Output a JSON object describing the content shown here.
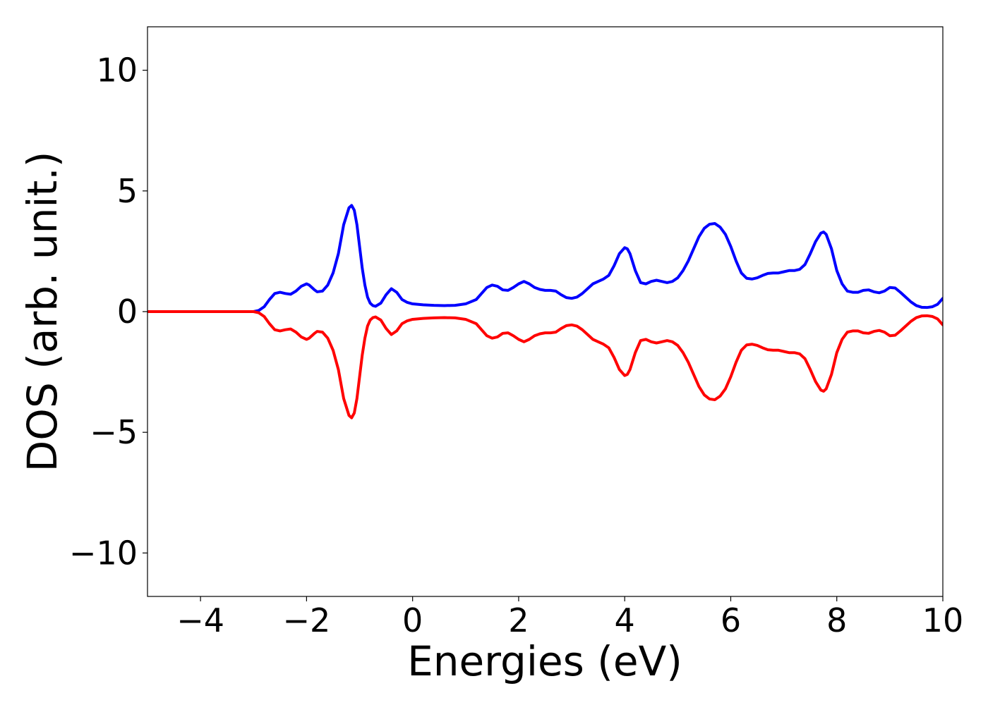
{
  "chart_data": {
    "type": "line",
    "title": "",
    "xlabel": "Energies (eV)",
    "ylabel": "DOS (arb. unit.)",
    "xlim": [
      -5,
      10
    ],
    "ylim": [
      -11.8,
      11.8
    ],
    "xticks": [
      -4,
      -2,
      0,
      2,
      4,
      6,
      8,
      10
    ],
    "xtick_labels": [
      "−4",
      "−2",
      "0",
      "2",
      "4",
      "6",
      "8",
      "10"
    ],
    "yticks": [
      -10,
      -5,
      0,
      5,
      10
    ],
    "ytick_labels": [
      "−10",
      "−5",
      "0",
      "5",
      "10"
    ],
    "grid": false,
    "legend": "none",
    "series": [
      {
        "color": "#0000ff",
        "x": [
          -5.0,
          -4.0,
          -3.0,
          -2.9,
          -2.8,
          -2.7,
          -2.6,
          -2.5,
          -2.4,
          -2.3,
          -2.2,
          -2.1,
          -2.0,
          -1.95,
          -1.9,
          -1.85,
          -1.8,
          -1.7,
          -1.6,
          -1.5,
          -1.4,
          -1.3,
          -1.2,
          -1.15,
          -1.1,
          -1.05,
          -1.0,
          -0.95,
          -0.9,
          -0.85,
          -0.8,
          -0.75,
          -0.7,
          -0.6,
          -0.5,
          -0.4,
          -0.3,
          -0.2,
          -0.1,
          0.0,
          0.2,
          0.4,
          0.6,
          0.8,
          1.0,
          1.2,
          1.3,
          1.4,
          1.5,
          1.6,
          1.7,
          1.8,
          1.9,
          2.0,
          2.1,
          2.2,
          2.3,
          2.4,
          2.5,
          2.6,
          2.7,
          2.8,
          2.9,
          3.0,
          3.1,
          3.2,
          3.3,
          3.4,
          3.5,
          3.6,
          3.7,
          3.8,
          3.9,
          4.0,
          4.05,
          4.1,
          4.2,
          4.3,
          4.4,
          4.5,
          4.6,
          4.7,
          4.8,
          4.9,
          5.0,
          5.1,
          5.2,
          5.3,
          5.4,
          5.5,
          5.6,
          5.7,
          5.8,
          5.9,
          6.0,
          6.1,
          6.2,
          6.3,
          6.4,
          6.5,
          6.6,
          6.7,
          6.8,
          6.9,
          7.0,
          7.1,
          7.2,
          7.3,
          7.4,
          7.5,
          7.6,
          7.7,
          7.75,
          7.8,
          7.9,
          8.0,
          8.1,
          8.2,
          8.3,
          8.4,
          8.5,
          8.6,
          8.7,
          8.8,
          8.9,
          9.0,
          9.1,
          9.2,
          9.3,
          9.4,
          9.5,
          9.6,
          9.7,
          9.8,
          9.9,
          10.0
        ],
        "y": [
          0.0,
          0.0,
          0.0,
          0.05,
          0.2,
          0.5,
          0.75,
          0.8,
          0.75,
          0.72,
          0.85,
          1.05,
          1.15,
          1.1,
          1.0,
          0.9,
          0.82,
          0.85,
          1.1,
          1.6,
          2.4,
          3.6,
          4.3,
          4.4,
          4.2,
          3.6,
          2.7,
          1.8,
          1.1,
          0.6,
          0.35,
          0.25,
          0.22,
          0.35,
          0.7,
          0.95,
          0.8,
          0.5,
          0.38,
          0.32,
          0.28,
          0.26,
          0.25,
          0.26,
          0.32,
          0.5,
          0.75,
          1.0,
          1.1,
          1.05,
          0.9,
          0.88,
          1.0,
          1.15,
          1.25,
          1.15,
          1.0,
          0.92,
          0.88,
          0.88,
          0.85,
          0.7,
          0.58,
          0.55,
          0.6,
          0.75,
          0.95,
          1.15,
          1.25,
          1.35,
          1.5,
          1.9,
          2.4,
          2.65,
          2.6,
          2.4,
          1.7,
          1.2,
          1.15,
          1.25,
          1.3,
          1.25,
          1.2,
          1.25,
          1.4,
          1.7,
          2.1,
          2.6,
          3.1,
          3.45,
          3.62,
          3.65,
          3.5,
          3.2,
          2.7,
          2.1,
          1.6,
          1.38,
          1.35,
          1.4,
          1.5,
          1.58,
          1.6,
          1.6,
          1.65,
          1.7,
          1.7,
          1.75,
          1.95,
          2.4,
          2.9,
          3.25,
          3.3,
          3.2,
          2.6,
          1.7,
          1.15,
          0.85,
          0.8,
          0.8,
          0.88,
          0.9,
          0.82,
          0.78,
          0.85,
          1.0,
          0.98,
          0.8,
          0.6,
          0.4,
          0.25,
          0.18,
          0.17,
          0.2,
          0.3,
          0.55
        ]
      },
      {
        "color": "#ff0000",
        "x": [
          -5.0,
          -4.0,
          -3.0,
          -2.9,
          -2.8,
          -2.7,
          -2.6,
          -2.5,
          -2.4,
          -2.3,
          -2.2,
          -2.1,
          -2.0,
          -1.95,
          -1.9,
          -1.85,
          -1.8,
          -1.7,
          -1.6,
          -1.5,
          -1.4,
          -1.3,
          -1.2,
          -1.15,
          -1.1,
          -1.05,
          -1.0,
          -0.95,
          -0.9,
          -0.85,
          -0.8,
          -0.75,
          -0.7,
          -0.6,
          -0.5,
          -0.4,
          -0.3,
          -0.2,
          -0.1,
          0.0,
          0.2,
          0.4,
          0.6,
          0.8,
          1.0,
          1.2,
          1.3,
          1.4,
          1.5,
          1.6,
          1.7,
          1.8,
          1.9,
          2.0,
          2.1,
          2.2,
          2.3,
          2.4,
          2.5,
          2.6,
          2.7,
          2.8,
          2.9,
          3.0,
          3.1,
          3.2,
          3.3,
          3.4,
          3.5,
          3.6,
          3.7,
          3.8,
          3.9,
          4.0,
          4.05,
          4.1,
          4.2,
          4.3,
          4.4,
          4.5,
          4.6,
          4.7,
          4.8,
          4.9,
          5.0,
          5.1,
          5.2,
          5.3,
          5.4,
          5.5,
          5.6,
          5.7,
          5.8,
          5.9,
          6.0,
          6.1,
          6.2,
          6.3,
          6.4,
          6.5,
          6.6,
          6.7,
          6.8,
          6.9,
          7.0,
          7.1,
          7.2,
          7.3,
          7.4,
          7.5,
          7.6,
          7.7,
          7.75,
          7.8,
          7.9,
          8.0,
          8.1,
          8.2,
          8.3,
          8.4,
          8.5,
          8.6,
          8.7,
          8.8,
          8.9,
          9.0,
          9.1,
          9.2,
          9.3,
          9.4,
          9.5,
          9.6,
          9.7,
          9.8,
          9.9,
          10.0
        ],
        "y": [
          0.0,
          0.0,
          0.0,
          -0.05,
          -0.2,
          -0.5,
          -0.75,
          -0.8,
          -0.75,
          -0.72,
          -0.85,
          -1.05,
          -1.15,
          -1.1,
          -1.0,
          -0.9,
          -0.82,
          -0.85,
          -1.1,
          -1.6,
          -2.4,
          -3.6,
          -4.3,
          -4.4,
          -4.2,
          -3.6,
          -2.7,
          -1.8,
          -1.1,
          -0.6,
          -0.35,
          -0.25,
          -0.22,
          -0.35,
          -0.7,
          -0.95,
          -0.8,
          -0.5,
          -0.38,
          -0.32,
          -0.28,
          -0.26,
          -0.25,
          -0.26,
          -0.32,
          -0.5,
          -0.75,
          -1.0,
          -1.1,
          -1.05,
          -0.9,
          -0.88,
          -1.0,
          -1.15,
          -1.25,
          -1.15,
          -1.0,
          -0.92,
          -0.88,
          -0.88,
          -0.85,
          -0.7,
          -0.58,
          -0.55,
          -0.6,
          -0.75,
          -0.95,
          -1.15,
          -1.25,
          -1.35,
          -1.5,
          -1.9,
          -2.4,
          -2.65,
          -2.6,
          -2.4,
          -1.7,
          -1.2,
          -1.15,
          -1.25,
          -1.3,
          -1.25,
          -1.2,
          -1.25,
          -1.4,
          -1.7,
          -2.1,
          -2.6,
          -3.1,
          -3.45,
          -3.62,
          -3.65,
          -3.5,
          -3.2,
          -2.7,
          -2.1,
          -1.6,
          -1.38,
          -1.35,
          -1.4,
          -1.5,
          -1.58,
          -1.6,
          -1.6,
          -1.65,
          -1.7,
          -1.7,
          -1.75,
          -1.95,
          -2.4,
          -2.9,
          -3.25,
          -3.3,
          -3.2,
          -2.6,
          -1.7,
          -1.15,
          -0.85,
          -0.8,
          -0.8,
          -0.88,
          -0.9,
          -0.82,
          -0.78,
          -0.85,
          -1.0,
          -0.98,
          -0.8,
          -0.6,
          -0.4,
          -0.25,
          -0.18,
          -0.17,
          -0.2,
          -0.3,
          -0.55
        ]
      }
    ]
  }
}
